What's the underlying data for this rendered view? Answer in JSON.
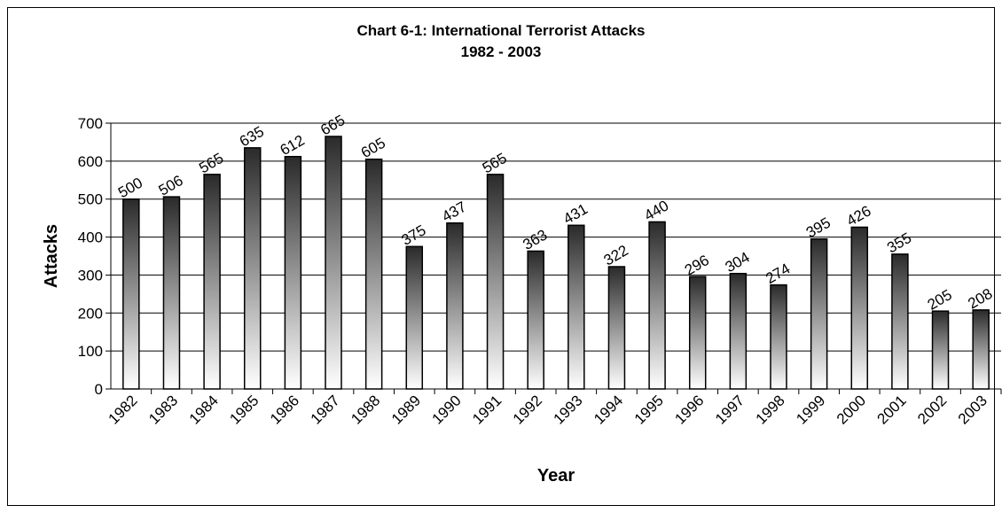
{
  "chart_data": {
    "type": "bar",
    "title": "Chart 6-1: International Terrorist Attacks",
    "subtitle": "1982 - 2003",
    "xlabel": "Year",
    "ylabel": "Attacks",
    "ylim": [
      0,
      700
    ],
    "yticks": [
      "0",
      "100",
      "200",
      "300",
      "400",
      "500",
      "600",
      "700"
    ],
    "grid": true,
    "legend": "none",
    "categories": [
      "1982",
      "1983",
      "1984",
      "1985",
      "1986",
      "1987",
      "1988",
      "1989",
      "1990",
      "1991",
      "1992",
      "1993",
      "1994",
      "1995",
      "1996",
      "1997",
      "1998",
      "1999",
      "2000",
      "2001",
      "2002",
      "2003"
    ],
    "values": [
      500,
      506,
      565,
      635,
      612,
      665,
      605,
      375,
      437,
      565,
      363,
      431,
      322,
      440,
      296,
      304,
      274,
      395,
      426,
      355,
      205,
      208
    ],
    "colors": {
      "bar_top": "#2a2a2a",
      "bar_bottom": "#ffffff",
      "grid": "#000000"
    }
  }
}
